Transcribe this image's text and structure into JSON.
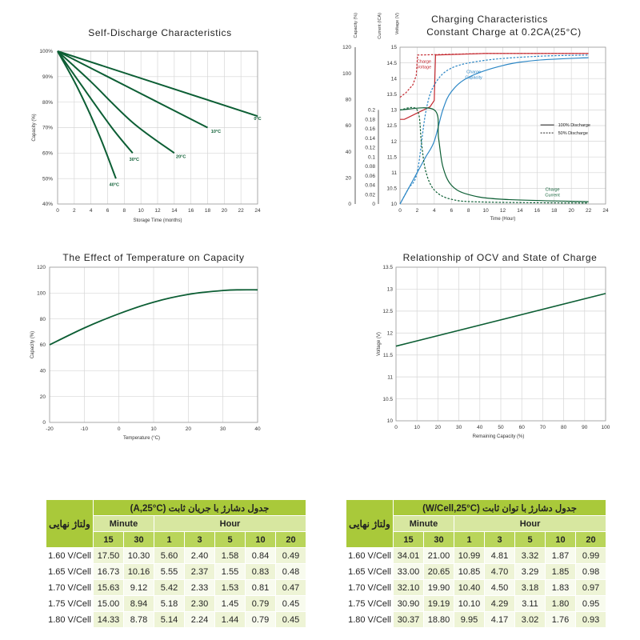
{
  "chart_data": [
    {
      "type": "line",
      "title": "Self-Discharge Characteristics",
      "xlabel": "Storage Time (months)",
      "ylabel": "Capacity (%)",
      "xlim": [
        0,
        24
      ],
      "ylim": [
        40,
        100
      ],
      "xticks": [
        "0",
        "2",
        "4",
        "6",
        "8",
        "10",
        "12",
        "14",
        "16",
        "18",
        "20",
        "22",
        "24"
      ],
      "yticks": [
        "40%",
        "50%",
        "60%",
        "70%",
        "80%",
        "90%",
        "100%"
      ],
      "color": "#0c5e34",
      "series": [
        {
          "name": "0°C",
          "points": [
            [
              0,
              100
            ],
            [
              24,
              74.5
            ]
          ],
          "label_at": [
            24,
            73
          ]
        },
        {
          "name": "10°C",
          "points": [
            [
              0,
              100
            ],
            [
              6,
              90
            ],
            [
              12,
              80
            ],
            [
              18,
              70
            ]
          ],
          "label_at": [
            19,
            68
          ]
        },
        {
          "name": "20°C",
          "points": [
            [
              0,
              100
            ],
            [
              4,
              88
            ],
            [
              9,
              72
            ],
            [
              14,
              60
            ]
          ],
          "label_at": [
            14.8,
            58
          ]
        },
        {
          "name": "30°C",
          "points": [
            [
              0,
              100
            ],
            [
              3,
              86
            ],
            [
              6.5,
              70
            ],
            [
              9,
              60
            ]
          ],
          "label_at": [
            9.2,
            57
          ]
        },
        {
          "name": "40°C",
          "points": [
            [
              0,
              100
            ],
            [
              2.5,
              85
            ],
            [
              5,
              67
            ],
            [
              7,
              50
            ]
          ],
          "label_at": [
            6.8,
            47
          ]
        }
      ]
    },
    {
      "type": "line",
      "title": "Charging Characteristics",
      "subtitle": "Constant Charge at 0.2CA(25°C)",
      "xlabel": "Time (Hour)",
      "axis_titles": [
        "Capacity (%)",
        "Current (ICA)",
        "Voltage (V)"
      ],
      "xlim": [
        0,
        24
      ],
      "xticks": [
        "0",
        "2",
        "4",
        "6",
        "8",
        "10",
        "12",
        "14",
        "16",
        "18",
        "20",
        "22",
        "24"
      ],
      "capacity_ticks": [
        "0",
        "20",
        "40",
        "60",
        "80",
        "100",
        "120"
      ],
      "current_ticks": [
        "0",
        "0.02",
        "0.04",
        "0.06",
        "0.08",
        "0.1",
        "0.12",
        "0.14",
        "0.16",
        "0.18",
        "0.2"
      ],
      "voltage_ticks": [
        "10",
        "10.5",
        "11",
        "11.5",
        "12",
        "12.5",
        "13",
        "13.5",
        "14",
        "14.5",
        "15"
      ],
      "legend": {
        "solid": "100% Discharge",
        "dashed": "50% Discharge",
        "position": "right-middle"
      },
      "annotations": {
        "voltage": "Charge\nVoltage",
        "capacity": "Charge\nCapacity",
        "current": "Charge\nCurrent"
      },
      "colors": {
        "voltage": "#c4282f",
        "capacity": "#2b86c5",
        "current": "#0c5e34"
      },
      "series": [
        {
          "name": "Charge Voltage 100%",
          "axis": "voltage",
          "style": "solid",
          "points": [
            [
              0,
              12.7
            ],
            [
              0.5,
              12.7
            ],
            [
              2,
              12.9
            ],
            [
              3.5,
              13.1
            ],
            [
              4,
              13.3
            ],
            [
              4.15,
              14.75
            ],
            [
              10,
              14.8
            ],
            [
              22,
              14.8
            ]
          ]
        },
        {
          "name": "Charge Voltage 50%",
          "axis": "voltage",
          "style": "dashed",
          "points": [
            [
              0,
              13.4
            ],
            [
              0.7,
              13.55
            ],
            [
              1.5,
              13.8
            ],
            [
              1.9,
              14.1
            ],
            [
              2.05,
              14.75
            ],
            [
              10,
              14.8
            ],
            [
              22,
              14.8
            ]
          ]
        },
        {
          "name": "Charge Capacity 100%",
          "axis": "capacity",
          "style": "solid",
          "points": [
            [
              0,
              0
            ],
            [
              1,
              12
            ],
            [
              2,
              24
            ],
            [
              3,
              36
            ],
            [
              4,
              48
            ],
            [
              5,
              72
            ],
            [
              6,
              86
            ],
            [
              8,
              97
            ],
            [
              12,
              106
            ],
            [
              16,
              110
            ],
            [
              22,
              112
            ]
          ]
        },
        {
          "name": "Charge Capacity 50%",
          "axis": "capacity",
          "style": "dashed",
          "points": [
            [
              0,
              0
            ],
            [
              1,
              12
            ],
            [
              2,
              24
            ],
            [
              3,
              70
            ],
            [
              4,
              91
            ],
            [
              6,
              104
            ],
            [
              10,
              110
            ],
            [
              16,
              113
            ],
            [
              22,
              114
            ]
          ]
        },
        {
          "name": "Charge Current 100%",
          "axis": "current",
          "style": "solid",
          "points": [
            [
              0,
              0.2
            ],
            [
              4,
              0.2
            ],
            [
              4.5,
              0.14
            ],
            [
              5,
              0.08
            ],
            [
              6,
              0.04
            ],
            [
              8,
              0.02
            ],
            [
              12,
              0.01
            ],
            [
              22,
              0.005
            ]
          ]
        },
        {
          "name": "Charge Current 50%",
          "axis": "current",
          "style": "dashed",
          "points": [
            [
              0,
              0.2
            ],
            [
              2,
              0.2
            ],
            [
              2.5,
              0.13
            ],
            [
              3,
              0.07
            ],
            [
              4,
              0.03
            ],
            [
              6,
              0.01
            ],
            [
              10,
              0.004
            ],
            [
              22,
              0.002
            ]
          ]
        }
      ]
    },
    {
      "type": "line",
      "title": "The Effect of Temperature on Capacity",
      "xlabel": "Temperature (°C)",
      "ylabel": "Capacity (%)",
      "xlim": [
        -20,
        40
      ],
      "ylim": [
        0,
        120
      ],
      "xticks": [
        "-20",
        "-10",
        "0",
        "10",
        "20",
        "30",
        "40"
      ],
      "yticks": [
        "0",
        "20",
        "40",
        "60",
        "80",
        "100",
        "120"
      ],
      "color": "#0c5e34",
      "series": [
        {
          "name": "Capacity",
          "points": [
            [
              -20,
              60
            ],
            [
              -10,
              73
            ],
            [
              0,
              84
            ],
            [
              10,
              93
            ],
            [
              20,
              99
            ],
            [
              30,
              102
            ],
            [
              35,
              102.5
            ],
            [
              40,
              102.5
            ]
          ]
        }
      ]
    },
    {
      "type": "line",
      "title": "Relationship of OCV and State of Charge",
      "xlabel": "Remaining Capacity (%)",
      "ylabel": "Voltage (V)",
      "xlim": [
        0,
        100
      ],
      "ylim": [
        10,
        13.5
      ],
      "xticks": [
        "0",
        "10",
        "20",
        "30",
        "40",
        "50",
        "60",
        "70",
        "80",
        "90",
        "100"
      ],
      "yticks": [
        "10",
        "10.5",
        "11",
        "11.5",
        "12",
        "12.5",
        "13",
        "13.5"
      ],
      "color": "#0c5e34",
      "series": [
        {
          "name": "OCV",
          "points": [
            [
              0,
              11.7
            ],
            [
              100,
              12.9
            ]
          ]
        }
      ]
    },
    {
      "type": "table",
      "title": "جدول دشارژ با جریان ثابت (A,25°C)",
      "row_header": "ولتاژ نهایی",
      "group_headers": [
        "Minute",
        "Hour"
      ],
      "columns": [
        "15",
        "30",
        "1",
        "3",
        "5",
        "10",
        "20"
      ],
      "rows": [
        {
          "label": "1.60 V/Cell",
          "values": [
            "17.50",
            "10.30",
            "5.60",
            "2.40",
            "1.58",
            "0.84",
            "0.49"
          ]
        },
        {
          "label": "1.65 V/Cell",
          "values": [
            "16.73",
            "10.16",
            "5.55",
            "2.37",
            "1.55",
            "0.83",
            "0.48"
          ]
        },
        {
          "label": "1.70 V/Cell",
          "values": [
            "15.63",
            "9.12",
            "5.42",
            "2.33",
            "1.53",
            "0.81",
            "0.47"
          ]
        },
        {
          "label": "1.75 V/Cell",
          "values": [
            "15.00",
            "8.94",
            "5.18",
            "2.30",
            "1.45",
            "0.79",
            "0.45"
          ]
        },
        {
          "label": "1.80 V/Cell",
          "values": [
            "14.33",
            "8.78",
            "5.14",
            "2.24",
            "1.44",
            "0.79",
            "0.45"
          ]
        }
      ]
    },
    {
      "type": "table",
      "title": "جدول دشارژ با توان ثابت (W/Cell,25°C)",
      "row_header": "ولتاژ نهایی",
      "group_headers": [
        "Minute",
        "Hour"
      ],
      "columns": [
        "15",
        "30",
        "1",
        "3",
        "5",
        "10",
        "20"
      ],
      "rows": [
        {
          "label": "1.60 V/Cell",
          "values": [
            "34.01",
            "21.00",
            "10.99",
            "4.81",
            "3.32",
            "1.87",
            "0.99"
          ]
        },
        {
          "label": "1.65 V/Cell",
          "values": [
            "33.00",
            "20.65",
            "10.85",
            "4.70",
            "3.29",
            "1.85",
            "0.98"
          ]
        },
        {
          "label": "1.70 V/Cell",
          "values": [
            "32.10",
            "19.90",
            "10.40",
            "4.50",
            "3.18",
            "1.83",
            "0.97"
          ]
        },
        {
          "label": "1.75 V/Cell",
          "values": [
            "30.90",
            "19.19",
            "10.10",
            "4.29",
            "3.11",
            "1.80",
            "0.95"
          ]
        },
        {
          "label": "1.80 V/Cell",
          "values": [
            "30.37",
            "18.80",
            "9.95",
            "4.17",
            "3.02",
            "1.76",
            "0.93"
          ]
        }
      ]
    }
  ]
}
